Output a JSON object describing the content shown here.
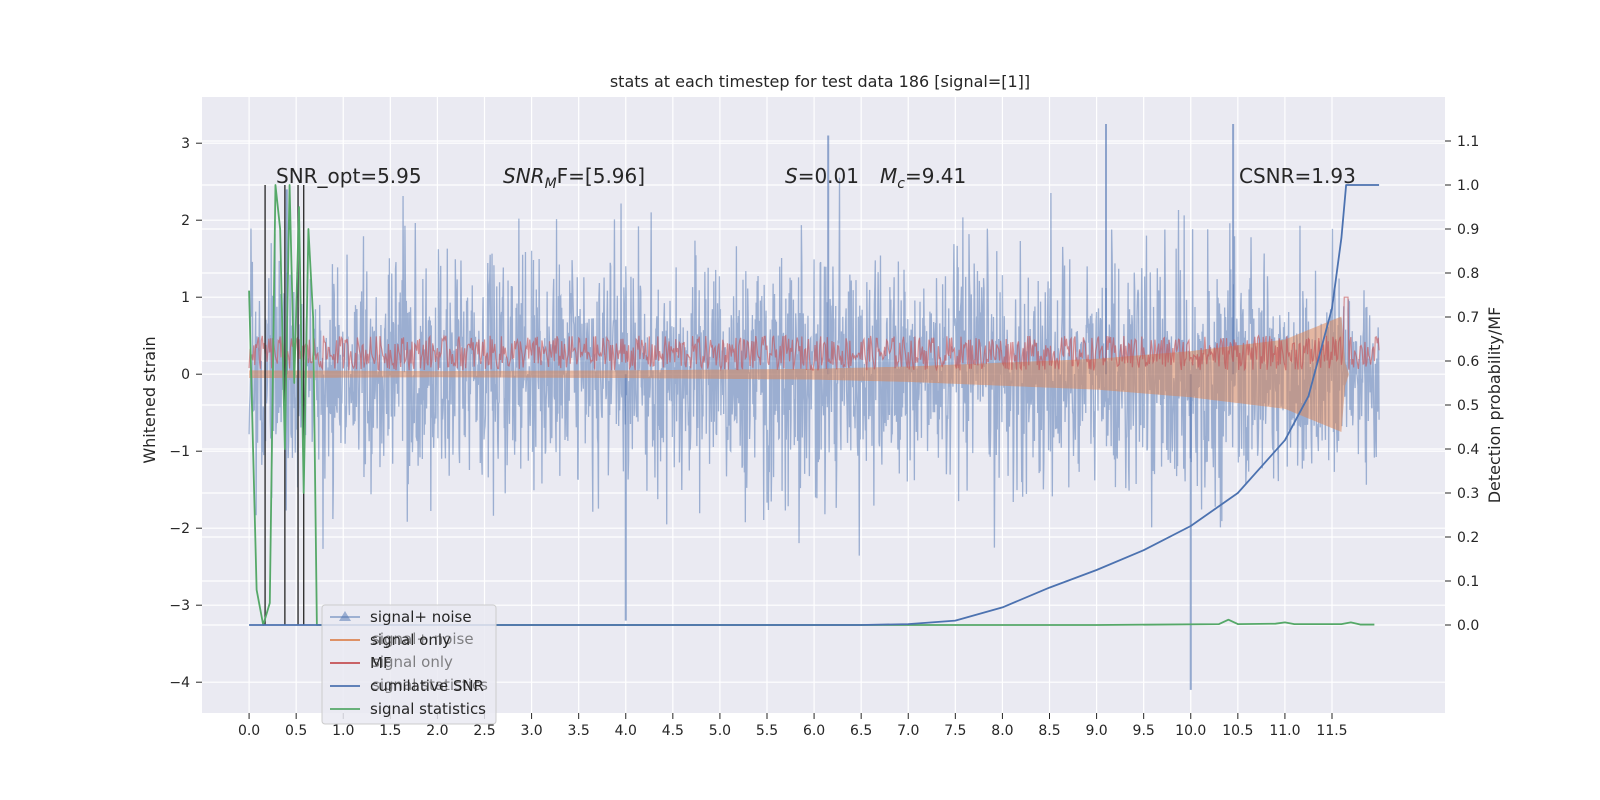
{
  "chart_data": {
    "type": "line",
    "title": "stats at each timestep for test data 186 [signal=[1]]",
    "xlabel": "",
    "ylabel_left": "Whitened strain",
    "ylabel_right": "Detection probability/MF",
    "xlim": [
      -0.5,
      12.7
    ],
    "ylim_left": [
      -4.4,
      3.6
    ],
    "ylim_right": [
      -0.2,
      1.2
    ],
    "x_ticks": [
      "0.0",
      "0.5",
      "1.0",
      "1.5",
      "2.0",
      "2.5",
      "3.0",
      "3.5",
      "4.0",
      "4.5",
      "5.0",
      "5.5",
      "6.0",
      "6.5",
      "7.0",
      "7.5",
      "8.0",
      "8.5",
      "9.0",
      "9.5",
      "10.0",
      "10.5",
      "11.0",
      "11.5"
    ],
    "y_ticks_left": [
      "3",
      "2",
      "1",
      "0",
      "−1",
      "−2",
      "−3",
      "−4"
    ],
    "y_ticks_right": [
      "1.1",
      "1.0",
      "0.9",
      "0.8",
      "0.7",
      "0.6",
      "0.5",
      "0.4",
      "0.3",
      "0.2",
      "0.1",
      "0.0"
    ],
    "grid": true,
    "legend_position": "lower-left",
    "background": "#eaeaf2",
    "annotations": {
      "snr_opt": "SNR_opt=5.95",
      "snr_mf_main": "SNR",
      "snr_mf_sub": "M",
      "snr_mf_rest": "F=[5.96]",
      "s_sym": "S",
      "s_val": "=0.01",
      "mc_sym": "M",
      "mc_sub": "c",
      "mc_val": "=9.41",
      "csnr": "CSNR=1.93"
    },
    "series": [
      {
        "name": "signal+ noise",
        "color": "#4c72b0",
        "opacity": 0.5,
        "axis": "left",
        "description_level": "noise-like trace, typical amplitude about ±1.2, spikes up to 3.2 and down to -4.1",
        "x_range": [
          0.0,
          12.0
        ],
        "peaks": [
          [
            0.4,
            2.4
          ],
          [
            6.15,
            3.1
          ],
          [
            9.1,
            3.25
          ],
          [
            10.0,
            -4.1
          ],
          [
            10.45,
            3.25
          ],
          [
            4.0,
            -3.2
          ]
        ]
      },
      {
        "name": "signal only",
        "color": "#dd8452",
        "opacity": 0.5,
        "axis": "left",
        "envelope": [
          [
            0.0,
            0.05
          ],
          [
            2.0,
            0.04
          ],
          [
            4.0,
            0.05
          ],
          [
            6.0,
            0.07
          ],
          [
            7.0,
            0.1
          ],
          [
            8.0,
            0.15
          ],
          [
            9.0,
            0.2
          ],
          [
            10.0,
            0.3
          ],
          [
            11.0,
            0.45
          ],
          [
            11.6,
            0.75
          ],
          [
            11.65,
            0.0
          ],
          [
            12.0,
            0.0
          ]
        ]
      },
      {
        "name": "MF",
        "color": "#c44e52",
        "opacity": 0.6,
        "axis": "left",
        "base_range": [
          0.05,
          0.5
        ],
        "peak": [
          11.65,
          1.0
        ]
      },
      {
        "name": "cumilative SNR",
        "color": "#4c72b0",
        "axis": "right",
        "x": [
          0.0,
          6.5,
          7.0,
          7.5,
          8.0,
          8.5,
          9.0,
          9.5,
          10.0,
          10.5,
          11.0,
          11.25,
          11.5,
          11.6,
          11.65,
          12.0
        ],
        "y": [
          0.0,
          0.0,
          0.002,
          0.01,
          0.04,
          0.085,
          0.125,
          0.17,
          0.225,
          0.3,
          0.42,
          0.52,
          0.72,
          0.88,
          1.0,
          1.0
        ]
      },
      {
        "name": "signal statistics",
        "color": "#55a868",
        "axis": "right",
        "x": [
          0.0,
          0.08,
          0.15,
          0.22,
          0.28,
          0.33,
          0.38,
          0.43,
          0.48,
          0.53,
          0.58,
          0.63,
          0.68,
          0.72,
          1.0,
          7.0,
          9.0,
          10.3,
          10.4,
          10.5,
          10.9,
          11.0,
          11.1,
          11.6,
          11.7,
          11.8,
          11.95
        ],
        "y": [
          0.76,
          0.08,
          0.0,
          0.05,
          1.0,
          0.9,
          0.4,
          1.0,
          0.55,
          0.95,
          0.3,
          0.9,
          0.7,
          0.0,
          0.0,
          0.0,
          0.0,
          0.002,
          0.012,
          0.002,
          0.003,
          0.006,
          0.002,
          0.002,
          0.006,
          0.001,
          0.001
        ]
      }
    ],
    "vertical_lines": {
      "color": "#333333",
      "x": [
        0.17,
        0.38,
        0.52,
        0.58
      ]
    },
    "right_axis_span_lines": {
      "x_start": 0.0,
      "x_end": 12.0
    }
  },
  "legend": {
    "items": [
      {
        "label": "signal+ noise",
        "color": "#4c72b0",
        "marker": "triangle"
      },
      {
        "label": "signal only",
        "color": "#dd8452"
      },
      {
        "label": "MF",
        "color": "#c44e52"
      },
      {
        "label": "cumilative SNR",
        "color": "#4c72b0"
      },
      {
        "label": "signal statistics",
        "color": "#55a868"
      }
    ],
    "shadow_text": [
      "signal+ noise",
      "signal only",
      "signal statistics"
    ]
  }
}
